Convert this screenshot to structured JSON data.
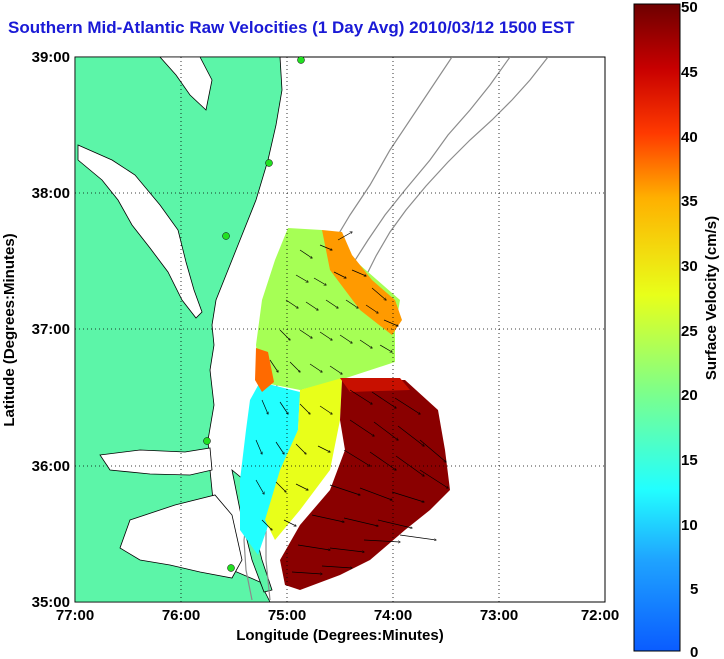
{
  "chart_data": {
    "type": "heatmap",
    "title": "Southern Mid-Atlantic Raw Velocities (1 Day Avg) 2010/03/12 1500 EST",
    "xlabel": "Longitude (Degrees:Minutes)",
    "ylabel": "Latitude (Degrees:Minutes)",
    "xlim": [
      -77,
      -72
    ],
    "ylim": [
      35,
      39
    ],
    "x_ticks": [
      "77:00",
      "76:00",
      "75:00",
      "74:00",
      "73:00",
      "72:00"
    ],
    "y_ticks": [
      "39:00",
      "38:00",
      "37:00",
      "36:00",
      "35:00"
    ],
    "grid": true,
    "colorbar": {
      "label": "Surface Velocity (cm/s)",
      "range": [
        0,
        50
      ],
      "ticks": [
        "50",
        "45",
        "40",
        "35",
        "30",
        "25",
        "20",
        "15",
        "10",
        "5",
        "0"
      ],
      "colors": [
        "#0a5cff",
        "#1fa3ff",
        "#22ffff",
        "#7dff8a",
        "#e8ff1a",
        "#ffb000",
        "#ff3a00",
        "#c80000",
        "#6e0000"
      ]
    },
    "velocity_regions": [
      {
        "region": "northern cluster near 37:30N 74:50W",
        "speed": 22
      },
      {
        "region": "northeast edge near 37:10N 74:00W",
        "speed": 36
      },
      {
        "region": "western band near 36:30N 75:05W",
        "speed": 12
      },
      {
        "region": "central band near 36:15N 74:35W",
        "speed": 24
      },
      {
        "region": "eastern core near 36:10N 74:00W",
        "speed": 48
      },
      {
        "region": "southern core near 35:30N 74:30W",
        "speed": 50
      }
    ],
    "land_color": "#5cf5a8",
    "bathymetry_color": "#8c8c8c"
  }
}
